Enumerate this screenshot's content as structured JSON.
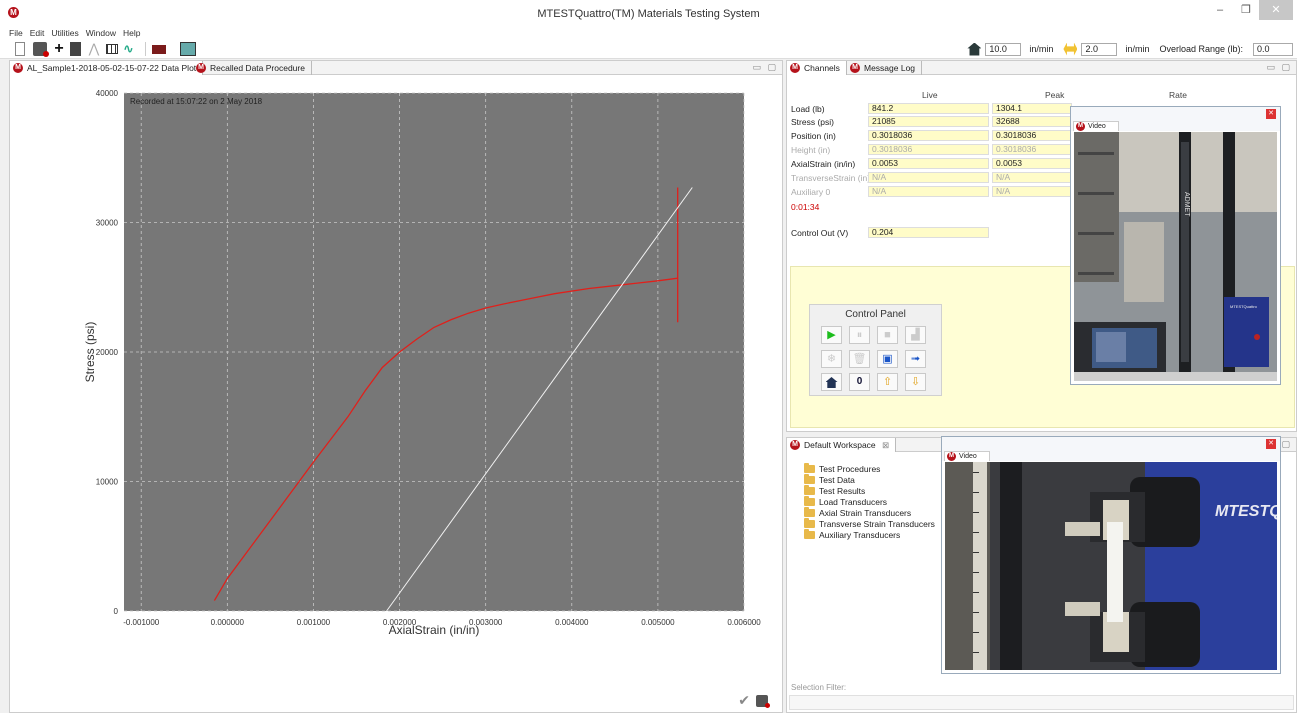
{
  "window": {
    "title": "MTESTQuattro(TM) Materials Testing System",
    "controls": {
      "minimize": "–",
      "restore": "❐",
      "close": "✕"
    }
  },
  "menu": [
    "File",
    "Edit",
    "Utilities",
    "Window",
    "Help"
  ],
  "rate_controls": {
    "rate1_value": "10.0",
    "rate1_unit": "in/min",
    "rate2_value": "2.0",
    "rate2_unit": "in/min",
    "overload_label": "Overload Range (lb):",
    "overload_value": "0.0"
  },
  "left_tabs": [
    {
      "label": "AL_Sample1-2018-05-02-15-07-22 Data Plot",
      "active": true
    },
    {
      "label": "Recalled Data Procedure",
      "active": false
    }
  ],
  "chart_data": {
    "type": "line",
    "annotation": "Recorded at 15:07:22 on 2 May 2018",
    "xlabel": "AxialStrain (in/in)",
    "ylabel": "Stress (psi)",
    "xlim": [
      -0.0012,
      0.006
    ],
    "ylim": [
      0,
      40000
    ],
    "x_ticks": [
      "-0.001000",
      "0.000000",
      "0.001000",
      "0.002000",
      "0.003000",
      "0.004000",
      "0.005000",
      "0.006000"
    ],
    "x_tick_values": [
      -0.001,
      0,
      0.001,
      0.002,
      0.003,
      0.004,
      0.005,
      0.006
    ],
    "y_ticks": [
      "0",
      "10000",
      "20000",
      "30000",
      "40000"
    ],
    "y_tick_values": [
      0,
      10000,
      20000,
      30000,
      40000
    ],
    "grid": true,
    "background": "#777777",
    "series": [
      {
        "color": "#e0201b",
        "x": [
          -0.00015,
          0.0,
          0.0005,
          0.001,
          0.0014,
          0.0016,
          0.0018,
          0.002,
          0.0022,
          0.0024,
          0.0026,
          0.0028,
          0.003,
          0.0032,
          0.0035,
          0.0038,
          0.0042,
          0.0046,
          0.005,
          0.00523
        ],
        "y": [
          800,
          2500,
          7000,
          11500,
          15000,
          17000,
          18800,
          20000,
          21000,
          21900,
          22500,
          23000,
          23400,
          23700,
          24100,
          24500,
          24900,
          25200,
          25500,
          25700
        ]
      },
      {
        "color": "#e0201b",
        "x": [
          0.00523,
          0.00523
        ],
        "y": [
          22300,
          32700
        ]
      },
      {
        "color": "#f2f2f2",
        "x": [
          0.00185,
          0.0054
        ],
        "y": [
          0,
          32700
        ]
      }
    ]
  },
  "right_tabs": [
    {
      "label": "Channels",
      "active": true
    },
    {
      "label": "Message Log",
      "active": false
    }
  ],
  "channels": {
    "headers": {
      "live": "Live",
      "peak": "Peak",
      "rate": "Rate"
    },
    "rows": [
      {
        "label": "Load (lb)",
        "live": "841.2",
        "peak": "1304.1",
        "enabled": true
      },
      {
        "label": "Stress (psi)",
        "live": "21085",
        "peak": "32688",
        "enabled": true
      },
      {
        "label": "Position (in)",
        "live": "0.3018036",
        "peak": "0.3018036",
        "enabled": true
      },
      {
        "label": "Height (in)",
        "live": "0.3018036",
        "peak": "0.3018036",
        "enabled": false
      },
      {
        "label": "AxialStrain (in/in)",
        "live": "0.0053",
        "peak": "0.0053",
        "enabled": true
      },
      {
        "label": "TransverseStrain (in)",
        "live": "N/A",
        "peak": "N/A",
        "enabled": false
      },
      {
        "label": "Auxiliary 0",
        "live": "N/A",
        "peak": "N/A",
        "enabled": false
      }
    ],
    "elapsed": "0:01:34",
    "control_out_label": "Control Out (V)",
    "control_out_value": "0.204"
  },
  "control_panel": {
    "title": "Control Panel",
    "buttons": [
      {
        "name": "start-button",
        "glyph": "▶",
        "enabled": true
      },
      {
        "name": "pause-button",
        "glyph": "⏸",
        "enabled": false
      },
      {
        "name": "stop-button",
        "glyph": "■",
        "enabled": false
      },
      {
        "name": "ramp-button",
        "glyph": "▟",
        "enabled": false
      },
      {
        "name": "cycle-button",
        "glyph": "❄",
        "enabled": false
      },
      {
        "name": "delete-button",
        "glyph": "🗑",
        "enabled": false
      },
      {
        "name": "export-button",
        "glyph": "▣",
        "enabled": true
      },
      {
        "name": "move-button",
        "glyph": "➟",
        "enabled": true
      },
      {
        "name": "home-button",
        "glyph": "",
        "enabled": true
      },
      {
        "name": "zero-button",
        "glyph": "0",
        "enabled": true
      },
      {
        "name": "jog-up-button",
        "glyph": "⇧",
        "enabled": true
      },
      {
        "name": "jog-down-button",
        "glyph": "⇩",
        "enabled": true
      }
    ]
  },
  "video_windows": [
    {
      "tab": "Video"
    },
    {
      "tab": "Video"
    }
  ],
  "video_text": {
    "machine_brand": "ADMET",
    "controller_brand": "MTESTQuattro",
    "machine_plate": "MTESTQ"
  },
  "workspace": {
    "tab": "Default Workspace",
    "items": [
      "Test Procedures",
      "Test Data",
      "Test Results",
      "Load Transducers",
      "Axial Strain Transducers",
      "Transverse Strain Transducers",
      "Auxiliary Transducers"
    ],
    "filter_label": "Selection Filter:"
  }
}
